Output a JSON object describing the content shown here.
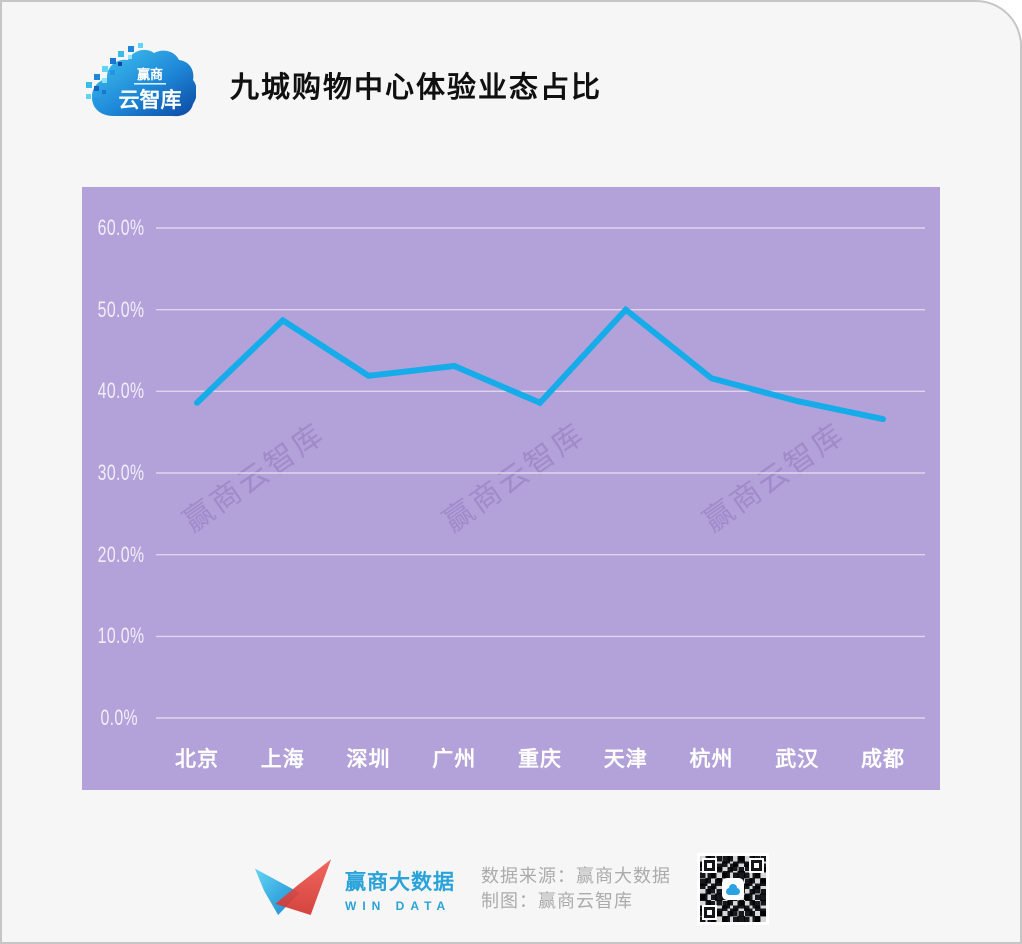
{
  "header": {
    "title": "九城购物中心体验业态占比",
    "logo_brand": "赢商",
    "logo_product": "云智库"
  },
  "watermark": {
    "text": "赢商云智库"
  },
  "chart_data": {
    "type": "line",
    "title": "九城购物中心体验业态占比",
    "categories": [
      "北京",
      "上海",
      "深圳",
      "广州",
      "重庆",
      "天津",
      "杭州",
      "武汉",
      "成都"
    ],
    "values": [
      38.6,
      48.7,
      41.9,
      43.1,
      38.6,
      50.0,
      41.6,
      38.8,
      36.6
    ],
    "unit": "%",
    "xlabel": "",
    "ylabel": "",
    "ylim": [
      0,
      60
    ],
    "ytick_step": 10,
    "yticks": [
      "60.0%",
      "50.0%",
      "40.0%",
      "30.0%",
      "20.0%",
      "10.0%",
      "0.0%"
    ],
    "grid": true,
    "legend": "none",
    "line_color": "#16ace9",
    "panel_color": "#b3a1da",
    "gridline_color": "#ded7eb"
  },
  "footer": {
    "brand_name": "赢商大数据",
    "brand_subtitle": "WIN DATA",
    "source_line": "数据来源：赢商大数据",
    "credit_line": "制图：赢商云智库"
  }
}
